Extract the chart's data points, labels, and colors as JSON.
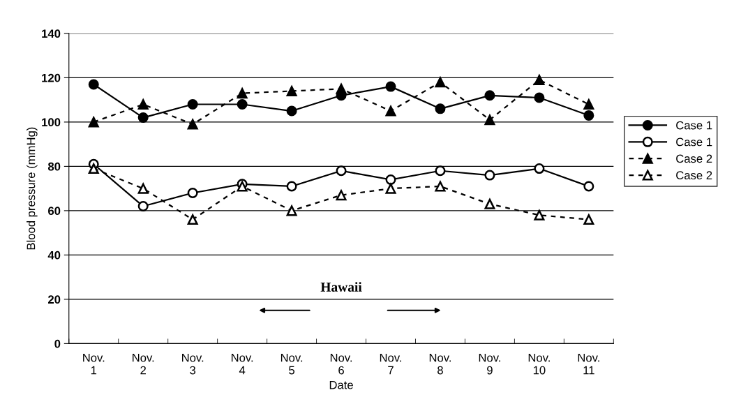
{
  "chart_data": {
    "type": "line",
    "xlabel": "Date",
    "ylabel": "Blood pressure (mmHg)",
    "categories": [
      "Nov.\n1",
      "Nov.\n2",
      "Nov.\n3",
      "Nov.\n4",
      "Nov.\n5",
      "Nov.\n6",
      "Nov.\n7",
      "Nov.\n8",
      "Nov.\n9",
      "Nov.\n10",
      "Nov.\n11"
    ],
    "series": [
      {
        "name": "Case 1",
        "color": "#000000",
        "marker": "circle",
        "line_style": "solid",
        "values": [
          117,
          102,
          108,
          108,
          105,
          112,
          116,
          106,
          112,
          111,
          103
        ]
      },
      {
        "name": "Case 1",
        "color": "#000000",
        "marker": "circle",
        "line_style": "solid",
        "values": [
          81,
          62,
          68,
          72,
          71,
          78,
          74,
          78,
          76,
          79,
          71
        ]
      },
      {
        "name": "Case 2",
        "color": "#000000",
        "marker": "triangle",
        "line_style": "dashed",
        "values": [
          100,
          108,
          99,
          113,
          114,
          115,
          105,
          118,
          101,
          119,
          108
        ]
      },
      {
        "name": "Case 2",
        "color": "#000000",
        "marker": "triangle",
        "line_style": "dashed",
        "values": [
          79,
          70,
          56,
          71,
          60,
          67,
          70,
          71,
          63,
          58,
          56
        ]
      }
    ],
    "ylim": [
      0,
      140
    ],
    "yticks": [
      0,
      20,
      40,
      60,
      80,
      100,
      120,
      140
    ],
    "grid": "y",
    "legend": "right",
    "annotations": [
      "Hawaii"
    ]
  }
}
